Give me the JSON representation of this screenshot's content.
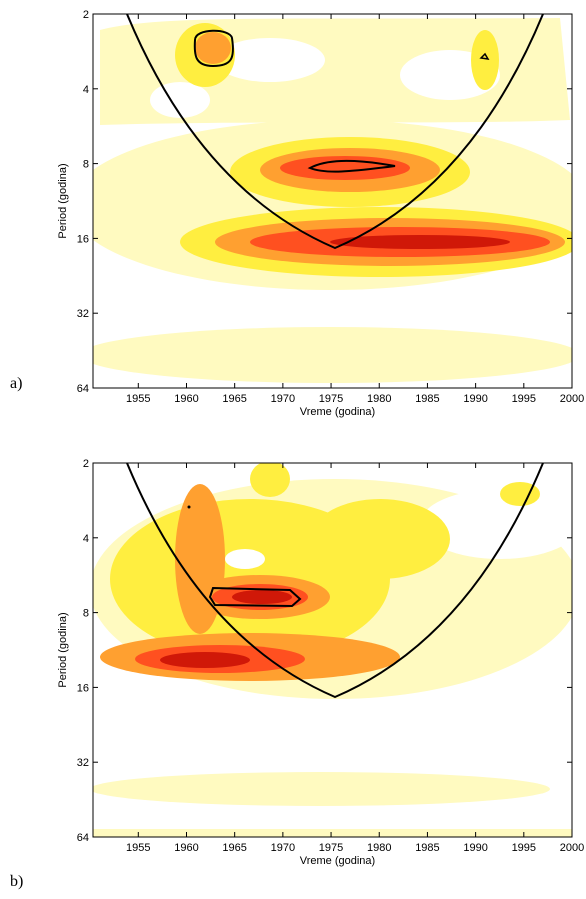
{
  "chart_data": [
    {
      "type": "contour",
      "panel_label": "a)",
      "xlabel": "Vreme (godina)",
      "ylabel": "Period (godina)",
      "xlim": [
        1950.3,
        2000
      ],
      "xticks": [
        1955,
        1960,
        1965,
        1970,
        1975,
        1980,
        1985,
        1990,
        1995,
        2000
      ],
      "ylim": [
        2,
        64
      ],
      "yticks": [
        2,
        4,
        8,
        16,
        32,
        64
      ],
      "log_scale_y": true,
      "y_reversed": true,
      "grid": false
    },
    {
      "type": "contour",
      "panel_label": "b)",
      "xlabel": "Vreme (godina)",
      "ylabel": "Period (godina)",
      "xlim": [
        1950.3,
        2000
      ],
      "xticks": [
        1955,
        1960,
        1965,
        1970,
        1975,
        1980,
        1985,
        1990,
        1995,
        2000
      ],
      "ylim": [
        2,
        64
      ],
      "yticks": [
        2,
        4,
        8,
        16,
        32,
        64
      ],
      "log_scale_y": true,
      "y_reversed": true,
      "grid": false
    }
  ]
}
